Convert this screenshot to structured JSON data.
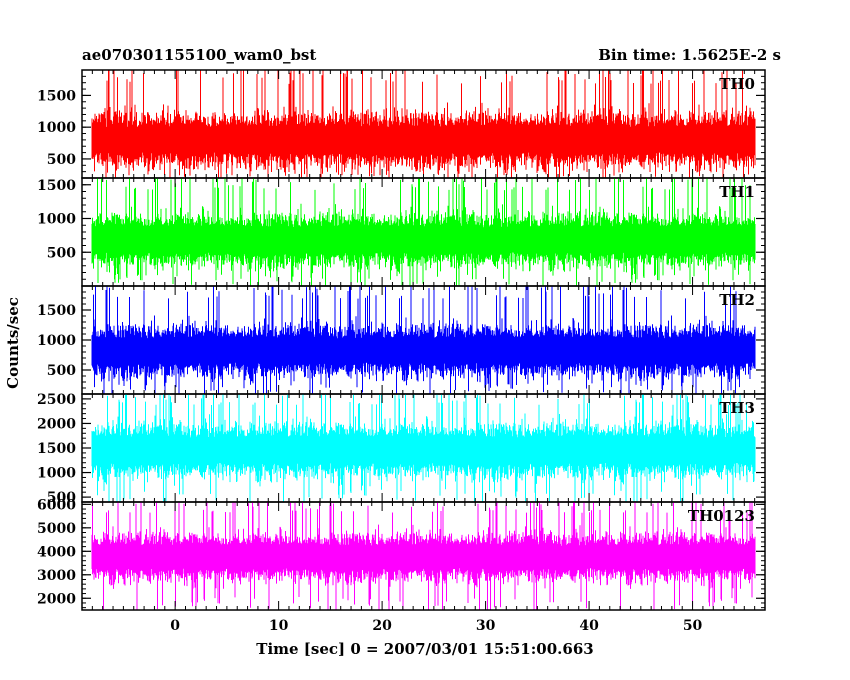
{
  "header": {
    "title": "ae070301155100_wam0_bst",
    "bin_time": "Bin time: 1.5625E-2 s"
  },
  "chart_data": {
    "type": "line",
    "ylabel": "Counts/sec",
    "xlabel": "Time [sec] 0 = 2007/03/01 15:51:00.663",
    "xlim": [
      -9,
      57
    ],
    "x_ticks": [
      0,
      10,
      20,
      30,
      40,
      50
    ],
    "x_range": [
      -8,
      56
    ],
    "panels": [
      {
        "name": "TH0",
        "color": "#ff0000",
        "ylim": [
          200,
          1900
        ],
        "y_ticks": [
          500,
          1000,
          1500
        ],
        "baseline": 800,
        "spread": 360,
        "spike_high": 1900,
        "spike_low": 200
      },
      {
        "name": "TH1",
        "color": "#00ff00",
        "ylim": [
          0,
          1600
        ],
        "y_ticks": [
          500,
          1000,
          1500
        ],
        "baseline": 680,
        "spread": 330,
        "spike_high": 1600,
        "spike_low": 0
      },
      {
        "name": "TH2",
        "color": "#0000ff",
        "ylim": [
          100,
          1900
        ],
        "y_ticks": [
          500,
          1000,
          1500
        ],
        "baseline": 820,
        "spread": 360,
        "spike_high": 1900,
        "spike_low": 100
      },
      {
        "name": "TH3",
        "color": "#00ffff",
        "ylim": [
          400,
          2600
        ],
        "y_ticks": [
          500,
          1000,
          1500,
          2000,
          2500
        ],
        "baseline": 1450,
        "spread": 460,
        "spike_high": 2600,
        "spike_low": 400
      },
      {
        "name": "TH0123",
        "color": "#ff00ff",
        "ylim": [
          1500,
          6100
        ],
        "y_ticks": [
          2000,
          3000,
          4000,
          5000,
          6000
        ],
        "baseline": 3750,
        "spread": 850,
        "spike_high": 6100,
        "spike_low": 1500
      }
    ]
  }
}
